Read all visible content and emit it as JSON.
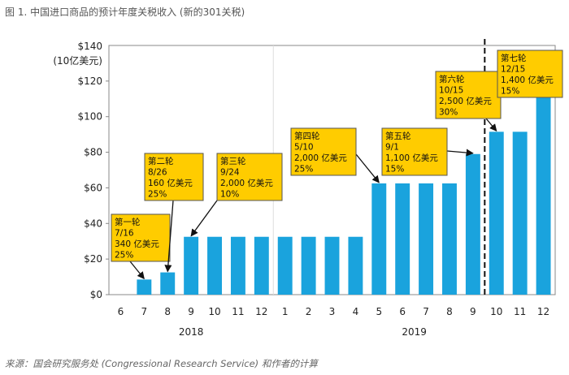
{
  "title": "图 1. 中国进口商品的预计年度关税收入 (新的301关税)",
  "source": "来源：国会研究服务处 (Congressional Research Service) 和作者的计算",
  "colors": {
    "bar": "#1aa3dd",
    "note_fill": "#ffcc00",
    "note_border": "#555555",
    "frame": "#888888",
    "grid": "#dddddd"
  },
  "chart_data": {
    "type": "bar",
    "ylabel_line1": "$140",
    "ylabel_line2": "(10亿美元)",
    "ylim": [
      0,
      140
    ],
    "yticks": [
      {
        "value": 0,
        "label": "$0"
      },
      {
        "value": 20,
        "label": "$20"
      },
      {
        "value": 40,
        "label": "$40"
      },
      {
        "value": 60,
        "label": "$60"
      },
      {
        "value": 80,
        "label": "$80"
      },
      {
        "value": 100,
        "label": "$100"
      },
      {
        "value": 120,
        "label": "$120"
      }
    ],
    "categories": [
      "6",
      "7",
      "8",
      "9",
      "10",
      "11",
      "12",
      "1",
      "2",
      "3",
      "4",
      "5",
      "6",
      "7",
      "8",
      "9",
      "10",
      "11",
      "12"
    ],
    "values": [
      0,
      8.5,
      12.5,
      32.5,
      32.5,
      32.5,
      32.5,
      32.5,
      32.5,
      32.5,
      32.5,
      62.5,
      62.5,
      62.5,
      62.5,
      79,
      91.5,
      91.5,
      114
    ],
    "years": [
      {
        "label": "2018",
        "first_index": 0,
        "last_index": 6
      },
      {
        "label": "2019",
        "first_index": 7,
        "last_index": 18
      }
    ],
    "dashed_line_after_index": 15,
    "annotations": [
      {
        "lines": [
          "第一轮",
          "7/16",
          "340 亿美元",
          "25%"
        ],
        "target_index": 1
      },
      {
        "lines": [
          "第二轮",
          "8/26",
          "160 亿美元",
          "25%"
        ],
        "target_index": 2
      },
      {
        "lines": [
          "第三轮",
          "9/24",
          "2,000 亿美元",
          "10%"
        ],
        "target_index": 3
      },
      {
        "lines": [
          "第四轮",
          "5/10",
          "2,000 亿美元",
          "25%"
        ],
        "target_index": 11
      },
      {
        "lines": [
          "第五轮",
          "9/1",
          "1,100 亿美元",
          "15%"
        ],
        "target_index": 15
      },
      {
        "lines": [
          "第六轮",
          "10/15",
          "2,500 亿美元",
          "30%"
        ],
        "target_index": 16
      },
      {
        "lines": [
          "第七轮",
          "12/15",
          "1,400 亿美元",
          "15%"
        ],
        "target_index": 18
      }
    ]
  }
}
